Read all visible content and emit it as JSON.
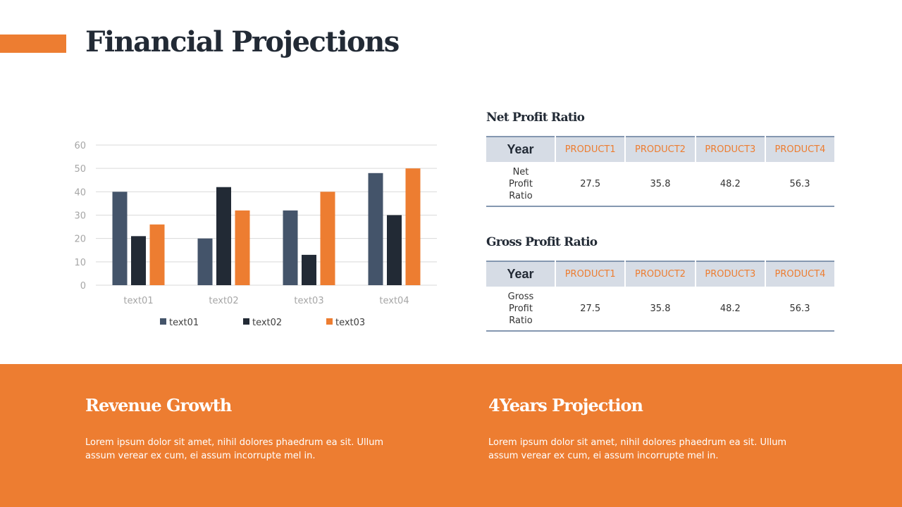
{
  "title": "Financial Projections",
  "colors": {
    "accent": "#ED7D31",
    "dark": "#222A35",
    "slate": "#44546A"
  },
  "chart_data": {
    "type": "bar",
    "categories": [
      "text01",
      "text02",
      "text03",
      "text04"
    ],
    "series": [
      {
        "name": "text01",
        "color": "#44546A",
        "values": [
          40,
          20,
          32,
          48
        ]
      },
      {
        "name": "text02",
        "color": "#222A35",
        "values": [
          21,
          42,
          13,
          30
        ]
      },
      {
        "name": "text03",
        "color": "#ED7D31",
        "values": [
          26,
          32,
          40,
          50
        ]
      }
    ],
    "ylim": [
      0,
      60
    ],
    "yticks": [
      0,
      10,
      20,
      30,
      40,
      50,
      60
    ],
    "grid": true,
    "legend": "bottom"
  },
  "net_table": {
    "title": "Net Profit Ratio",
    "headers": [
      "Year",
      "PRODUCT1",
      "PRODUCT2",
      "PRODUCT3",
      "PRODUCT4"
    ],
    "row": [
      "Net Profit Ratio",
      "27.5",
      "35.8",
      "48.2",
      "56.3"
    ]
  },
  "gross_table": {
    "title": "Gross Profit Ratio",
    "headers": [
      "Year",
      "PRODUCT1",
      "PRODUCT2",
      "PRODUCT3",
      "PRODUCT4"
    ],
    "row": [
      "Gross Profit Ratio",
      "27.5",
      "35.8",
      "48.2",
      "56.3"
    ]
  },
  "footer": [
    {
      "title": "Revenue Growth",
      "text": "Lorem ipsum dolor sit amet, nihil dolores phaedrum ea sit. Ullum assum verear ex cum, ei assum incorrupte mel in."
    },
    {
      "title": "4Years Projection",
      "text": "Lorem ipsum dolor sit amet, nihil dolores phaedrum ea sit. Ullum assum verear ex cum, ei assum incorrupte mel in."
    }
  ]
}
